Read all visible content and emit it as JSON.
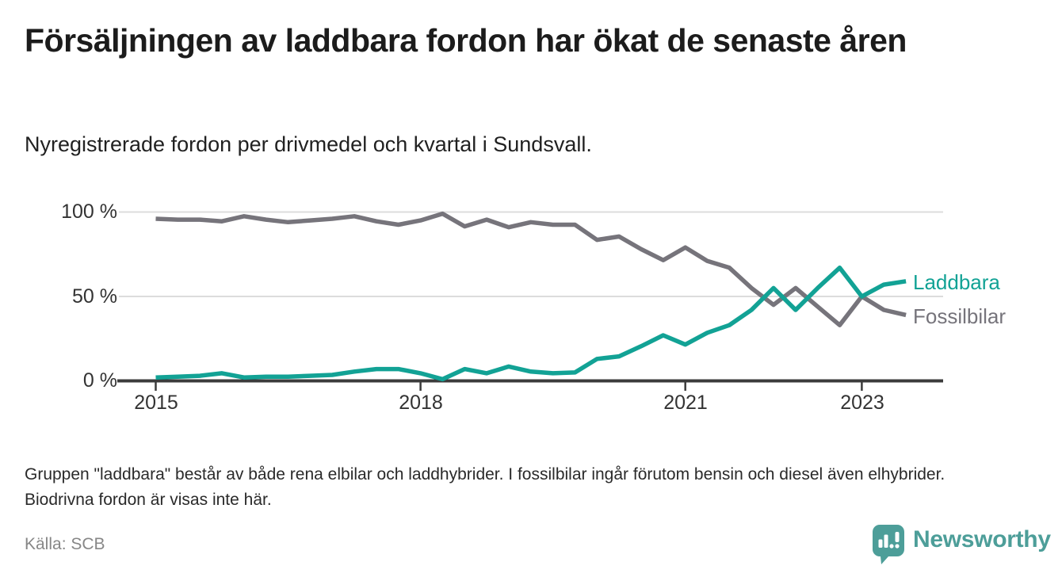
{
  "header": {
    "title": "Försäljningen av laddbara fordon har ökat de senaste åren",
    "subtitle": "Nyregistrerade fordon per drivmedel och kvartal i Sundsvall."
  },
  "chart_data": {
    "type": "line",
    "title": "Nyregistrerade fordon per drivmedel och kvartal i Sundsvall",
    "x": [
      "2015 Q1",
      "2015 Q2",
      "2015 Q3",
      "2015 Q4",
      "2016 Q1",
      "2016 Q2",
      "2016 Q3",
      "2016 Q4",
      "2017 Q1",
      "2017 Q2",
      "2017 Q3",
      "2017 Q4",
      "2018 Q1",
      "2018 Q2",
      "2018 Q3",
      "2018 Q4",
      "2019 Q1",
      "2019 Q2",
      "2019 Q3",
      "2019 Q4",
      "2020 Q1",
      "2020 Q2",
      "2020 Q3",
      "2020 Q4",
      "2021 Q1",
      "2021 Q2",
      "2021 Q3",
      "2021 Q4",
      "2022 Q1",
      "2022 Q2",
      "2022 Q3",
      "2022 Q4",
      "2023 Q1",
      "2023 Q2",
      "2023 Q3"
    ],
    "series": [
      {
        "name": "Laddbara",
        "color": "#12a295",
        "values": [
          2,
          2.5,
          3,
          4.5,
          2,
          2.5,
          2.5,
          3,
          3.5,
          5.5,
          7,
          7,
          4.5,
          1,
          7,
          4.5,
          8.5,
          5.5,
          4.5,
          5,
          13,
          14.5,
          20.5,
          27,
          21.5,
          28.5,
          33,
          42,
          55,
          42,
          55,
          67,
          50,
          57,
          59
        ]
      },
      {
        "name": "Fossilbilar",
        "color": "#76747b",
        "values": [
          96,
          95.5,
          95.5,
          94.5,
          97.5,
          95.5,
          94,
          95,
          96,
          97.5,
          94.5,
          92.5,
          95,
          99,
          91.5,
          95.5,
          91,
          94,
          92.5,
          92.5,
          83.5,
          85.5,
          78,
          71.5,
          79,
          71,
          67,
          55,
          45,
          55,
          44,
          33,
          50,
          42,
          39
        ]
      }
    ],
    "unit": "%",
    "ylim": [
      0,
      100
    ],
    "y_tick_labels": [
      "100 %",
      "50 %",
      "0 %"
    ],
    "x_tick_labels": [
      "2015",
      "2018",
      "2021",
      "2023"
    ],
    "grid": true,
    "legend_position": "end-of-line"
  },
  "footnote": "Gruppen \"laddbara\" består av både rena elbilar och laddhybrider. I fossilbilar ingår förutom bensin och diesel även elhybrider. Biodrivna fordon är visas inte här.",
  "source": "Källa: SCB",
  "branding": {
    "logo_text": "Newsworthy",
    "logo_color": "#4d9e99"
  },
  "colors": {
    "accent_teal": "#12a295",
    "line_gray": "#76747b",
    "gridline": "#dcdcdc",
    "axis": "#3b3b3b"
  }
}
